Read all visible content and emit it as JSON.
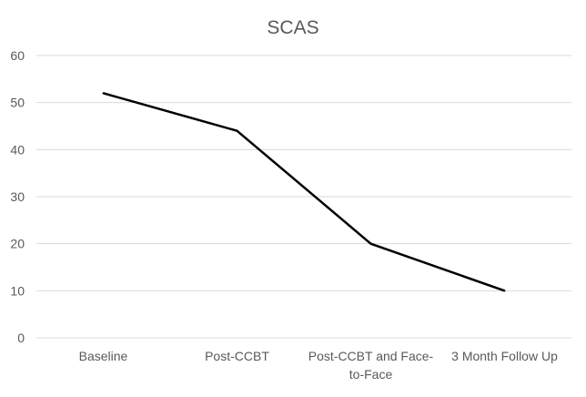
{
  "chart_data": {
    "type": "line",
    "title": "SCAS",
    "xlabel": "",
    "ylabel": "",
    "categories": [
      "Baseline",
      "Post-CCBT",
      "Post-CCBT and Face-to-Face",
      "3 Month Follow Up"
    ],
    "category_lines": [
      [
        "Baseline"
      ],
      [
        "Post-CCBT"
      ],
      [
        "Post-CCBT and Face-",
        "to-Face"
      ],
      [
        "3 Month Follow Up"
      ]
    ],
    "series": [
      {
        "name": "SCAS",
        "values": [
          52,
          44,
          20,
          10
        ],
        "color": "#000000"
      }
    ],
    "ylim": [
      0,
      60
    ],
    "yticks": [
      0,
      10,
      20,
      30,
      40,
      50,
      60
    ],
    "grid": true,
    "legend": "none"
  }
}
